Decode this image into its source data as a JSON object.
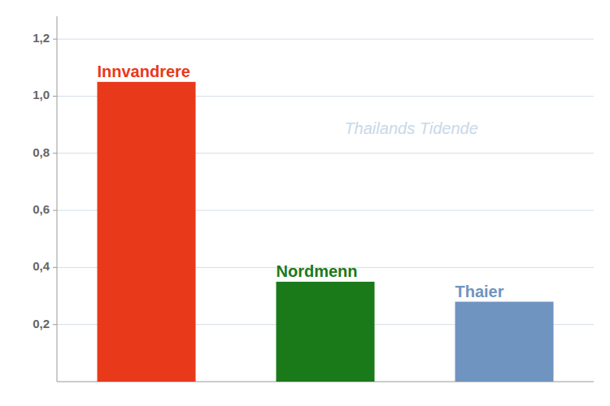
{
  "chart_data": {
    "type": "bar",
    "categories": [
      "Innvandrere",
      "Nordmenn",
      "Thaier"
    ],
    "values": [
      1.05,
      0.35,
      0.28
    ],
    "colors": [
      "#e8391a",
      "#1a7a1a",
      "#7094c0"
    ],
    "annotations": [
      "Thailands Tidende"
    ],
    "ylim": [
      0,
      1.28
    ],
    "yticks": [
      {
        "value": 0.2,
        "label": "0,2"
      },
      {
        "value": 0.4,
        "label": "0,4"
      },
      {
        "value": 0.6,
        "label": "0,6"
      },
      {
        "value": 0.8,
        "label": "0,8"
      },
      {
        "value": 1.0,
        "label": "1,0"
      },
      {
        "value": 1.2,
        "label": "1,2"
      }
    ],
    "grid": true,
    "tick_labels": "y"
  }
}
